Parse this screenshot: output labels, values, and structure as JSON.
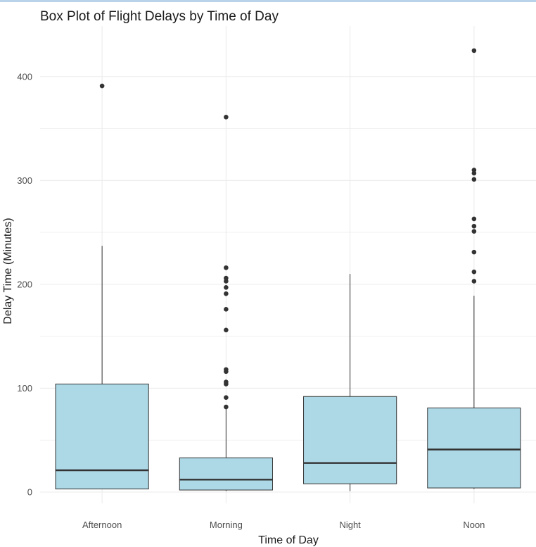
{
  "chart_data": {
    "type": "box",
    "title": "Box Plot of Flight Delays by Time of Day",
    "xlabel": "Time of Day",
    "ylabel": "Delay Time (Minutes)",
    "ylim": [
      -10,
      445
    ],
    "yticks": [
      0,
      100,
      200,
      300,
      400
    ],
    "grid": true,
    "colors": {
      "box_fill": "#add8e6",
      "stroke": "#333333",
      "grid": "#ebebeb"
    },
    "categories": [
      "Afternoon",
      "Morning",
      "Night",
      "Noon"
    ],
    "boxes": [
      {
        "category": "Afternoon",
        "whisker_low": 3,
        "q1": 3,
        "median": 21,
        "q3": 104,
        "whisker_high": 237,
        "outliers": [
          391
        ]
      },
      {
        "category": "Morning",
        "whisker_low": 1,
        "q1": 2,
        "median": 12,
        "q3": 33,
        "whisker_high": 80,
        "outliers": [
          82,
          91,
          104,
          106,
          116,
          118,
          156,
          176,
          191,
          197,
          203,
          206,
          216,
          361
        ]
      },
      {
        "category": "Night",
        "whisker_low": 1,
        "q1": 8,
        "median": 28,
        "q3": 92,
        "whisker_high": 210,
        "outliers": []
      },
      {
        "category": "Noon",
        "whisker_low": 3,
        "q1": 4,
        "median": 41,
        "q3": 81,
        "whisker_high": 189,
        "outliers": [
          203,
          212,
          231,
          251,
          256,
          263,
          301,
          307,
          310,
          425
        ]
      }
    ]
  }
}
